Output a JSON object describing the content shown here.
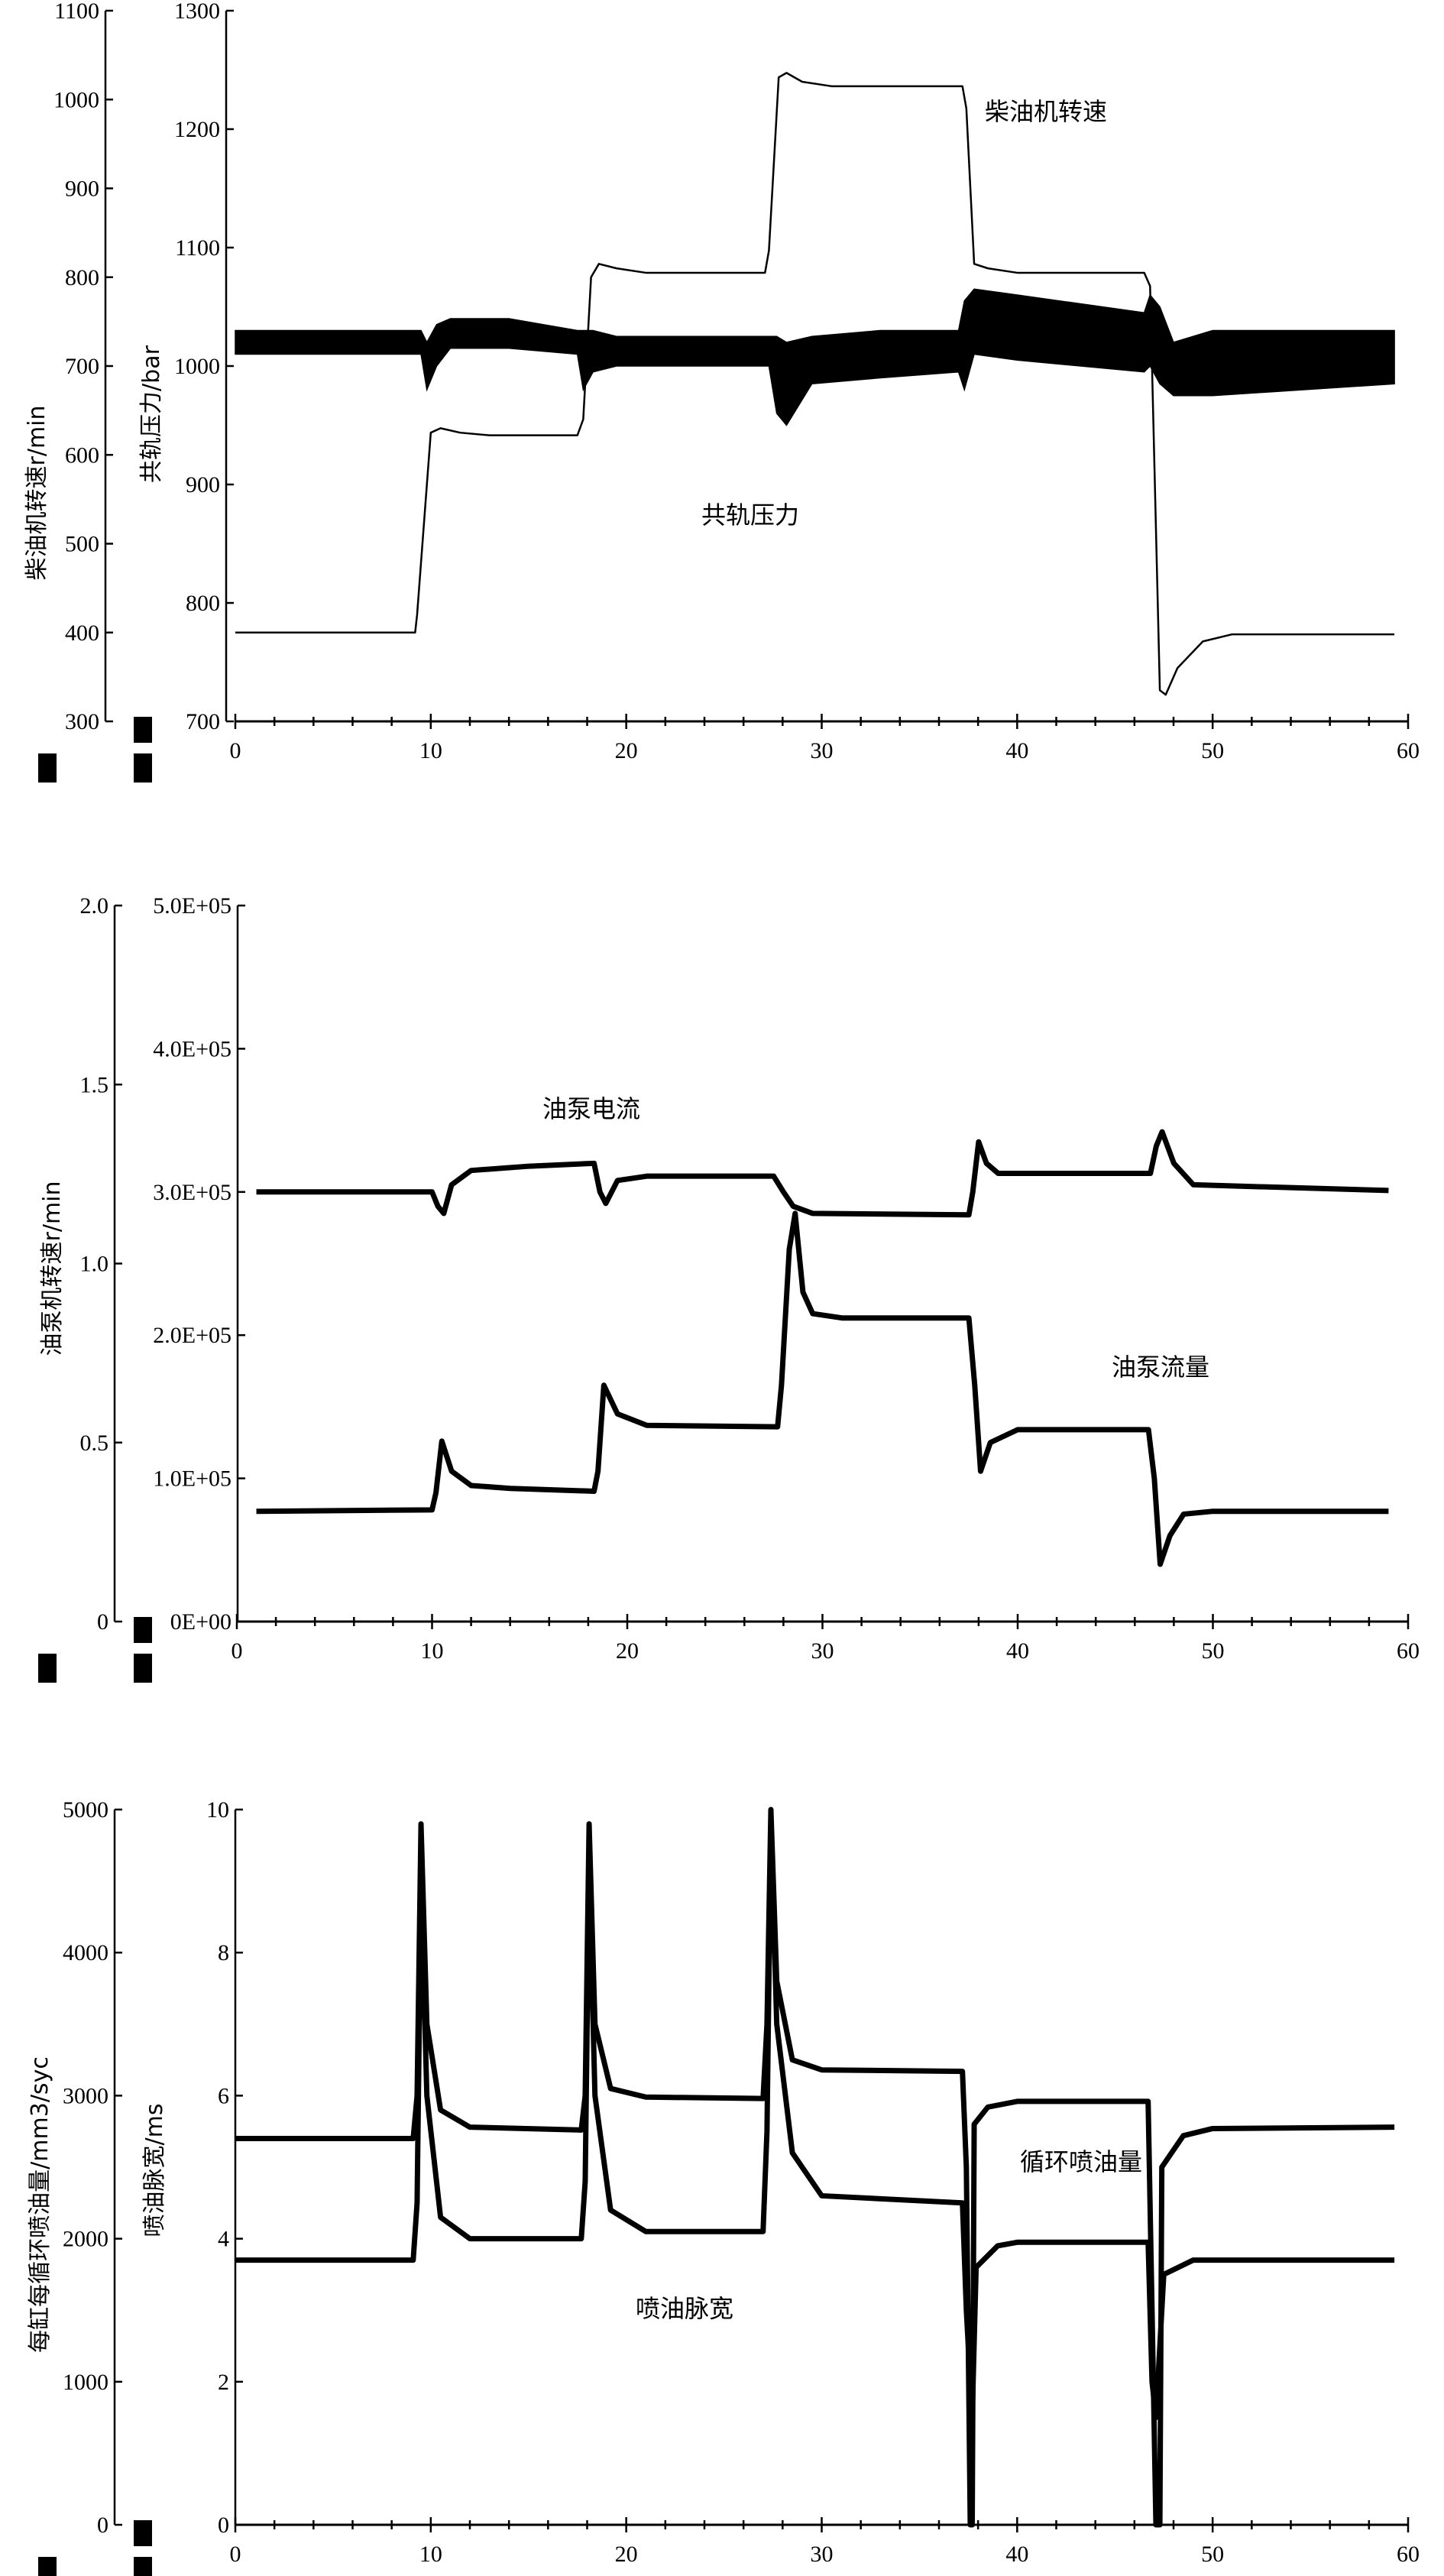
{
  "chart_data": [
    {
      "type": "line",
      "xlabel": "",
      "xlim": [
        0,
        60
      ],
      "x_ticks": [
        "0",
        "10",
        "20",
        "30",
        "40",
        "50",
        "60"
      ],
      "left_axes": [
        {
          "label": "柴油机转速r/min",
          "ylim": [
            300,
            1100
          ],
          "ticks": [
            "300",
            "400",
            "500",
            "600",
            "700",
            "800",
            "900",
            "1000",
            "1100"
          ]
        },
        {
          "label": "共轨压力/bar",
          "ylim": [
            700,
            1300
          ],
          "ticks": [
            "700",
            "800",
            "900",
            "1000",
            "1100",
            "1200",
            "1300"
          ]
        }
      ],
      "series": [
        {
          "name": "柴油机转速",
          "axis": 0,
          "style": "thin",
          "points": [
            [
              0,
              400
            ],
            [
              9.2,
              400
            ],
            [
              9.3,
              420
            ],
            [
              10.0,
              625
            ],
            [
              10.5,
              630
            ],
            [
              11.5,
              625
            ],
            [
              13,
              622
            ],
            [
              17.5,
              622
            ],
            [
              17.8,
              640
            ],
            [
              18.2,
              800
            ],
            [
              18.6,
              815
            ],
            [
              19.5,
              810
            ],
            [
              21,
              805
            ],
            [
              27.1,
              805
            ],
            [
              27.3,
              830
            ],
            [
              27.8,
              1025
            ],
            [
              28.2,
              1030
            ],
            [
              29,
              1020
            ],
            [
              30.5,
              1015
            ],
            [
              37.2,
              1015
            ],
            [
              37.4,
              990
            ],
            [
              37.8,
              815
            ],
            [
              38.5,
              810
            ],
            [
              40,
              805
            ],
            [
              46.5,
              805
            ],
            [
              46.8,
              790
            ],
            [
              47.3,
              335
            ],
            [
              47.6,
              330
            ],
            [
              48.2,
              360
            ],
            [
              49.5,
              390
            ],
            [
              51,
              398
            ],
            [
              59.3,
              398
            ]
          ]
        },
        {
          "name": "共轨压力",
          "axis": 1,
          "style": "band",
          "points": [
            [
              0,
              1010,
              1030
            ],
            [
              9.5,
              1010,
              1030
            ],
            [
              9.8,
              980,
              1020
            ],
            [
              10.3,
              1000,
              1035
            ],
            [
              11,
              1015,
              1040
            ],
            [
              14,
              1015,
              1040
            ],
            [
              17.5,
              1010,
              1030
            ],
            [
              17.8,
              980,
              1030
            ],
            [
              18.3,
              995,
              1030
            ],
            [
              19.5,
              1000,
              1025
            ],
            [
              27.3,
              1000,
              1025
            ],
            [
              27.7,
              960,
              1025
            ],
            [
              28.2,
              950,
              1020
            ],
            [
              29.5,
              985,
              1025
            ],
            [
              33,
              990,
              1030
            ],
            [
              37,
              995,
              1030
            ],
            [
              37.3,
              980,
              1055
            ],
            [
              37.8,
              1010,
              1065
            ],
            [
              40,
              1005,
              1060
            ],
            [
              46.5,
              995,
              1045
            ],
            [
              46.8,
              1000,
              1060
            ],
            [
              47.3,
              985,
              1050
            ],
            [
              48,
              975,
              1020
            ],
            [
              50,
              975,
              1030
            ],
            [
              59.3,
              985,
              1030
            ]
          ]
        }
      ],
      "annotations": [
        "柴油机转速",
        "共轨压力"
      ]
    },
    {
      "type": "line",
      "xlabel": "",
      "xlim": [
        0,
        60
      ],
      "x_ticks": [
        "0",
        "10",
        "20",
        "30",
        "40",
        "50",
        "60"
      ],
      "left_axes": [
        {
          "label": "油泵机转速r/min",
          "ylim": [
            0,
            2.0
          ],
          "ticks": [
            "0",
            "0.5",
            "1.0",
            "1.5",
            "2.0"
          ]
        },
        {
          "label": "",
          "ylim": [
            0,
            500000
          ],
          "ticks": [
            "0E+00",
            "1.0E+05",
            "2.0E+05",
            "3.0E+05",
            "4.0E+05",
            "5.0E+05"
          ]
        }
      ],
      "series": [
        {
          "name": "油泵电流",
          "axis": 1,
          "style": "thick",
          "points": [
            [
              1,
              300000
            ],
            [
              10,
              300000
            ],
            [
              10.3,
              290000
            ],
            [
              10.6,
              285000
            ],
            [
              11,
              305000
            ],
            [
              12,
              315000
            ],
            [
              15,
              318000
            ],
            [
              18.3,
              320000
            ],
            [
              18.6,
              300000
            ],
            [
              18.9,
              292000
            ],
            [
              19.5,
              308000
            ],
            [
              21,
              311000
            ],
            [
              27.5,
              311000
            ],
            [
              28,
              300000
            ],
            [
              28.5,
              290000
            ],
            [
              29.5,
              285000
            ],
            [
              37.5,
              284000
            ],
            [
              37.7,
              300000
            ],
            [
              38,
              335000
            ],
            [
              38.4,
              320000
            ],
            [
              39,
              313000
            ],
            [
              46.8,
              313000
            ],
            [
              47.1,
              332000
            ],
            [
              47.4,
              342000
            ],
            [
              48,
              320000
            ],
            [
              49,
              305000
            ],
            [
              59,
              301000
            ]
          ]
        },
        {
          "name": "油泵流量",
          "axis": 1,
          "style": "thick",
          "points": [
            [
              1,
              77000
            ],
            [
              10,
              78000
            ],
            [
              10.2,
              90000
            ],
            [
              10.5,
              126000
            ],
            [
              11,
              105000
            ],
            [
              12,
              95000
            ],
            [
              14,
              93000
            ],
            [
              18.3,
              91000
            ],
            [
              18.5,
              105000
            ],
            [
              18.8,
              165000
            ],
            [
              19.5,
              145000
            ],
            [
              21,
              137000
            ],
            [
              27.7,
              136000
            ],
            [
              27.9,
              165000
            ],
            [
              28.3,
              260000
            ],
            [
              28.6,
              285000
            ],
            [
              29,
              230000
            ],
            [
              29.5,
              215000
            ],
            [
              31,
              212000
            ],
            [
              37.5,
              212000
            ],
            [
              37.8,
              165000
            ],
            [
              38.1,
              105000
            ],
            [
              38.6,
              125000
            ],
            [
              40,
              134000
            ],
            [
              46.7,
              134000
            ],
            [
              47,
              100000
            ],
            [
              47.3,
              40000
            ],
            [
              47.8,
              60000
            ],
            [
              48.5,
              75000
            ],
            [
              50,
              77000
            ],
            [
              59,
              77000
            ]
          ]
        }
      ],
      "annotations": [
        "油泵电流",
        "油泵流量"
      ]
    },
    {
      "type": "line",
      "xlabel": "",
      "xlim": [
        0,
        60
      ],
      "x_ticks": [
        "0",
        "10",
        "20",
        "30",
        "40",
        "50",
        "60"
      ],
      "left_axes": [
        {
          "label": "每缸每循环喷油量/mm3/syc",
          "ylim": [
            0,
            5000
          ],
          "ticks": [
            "0",
            "1000",
            "2000",
            "3000",
            "4000",
            "5000"
          ]
        },
        {
          "label": "喷油脉宽/ms",
          "ylim": [
            0,
            10
          ],
          "ticks": [
            "0",
            "2",
            "4",
            "6",
            "8",
            "10"
          ]
        }
      ],
      "series": [
        {
          "name": "循环喷油量",
          "axis": 0,
          "style": "thick",
          "points": [
            [
              0,
              2700
            ],
            [
              9.1,
              2700
            ],
            [
              9.3,
              3000
            ],
            [
              9.5,
              4900
            ],
            [
              9.8,
              3500
            ],
            [
              10.5,
              2900
            ],
            [
              12,
              2780
            ],
            [
              17.7,
              2760
            ],
            [
              17.9,
              3000
            ],
            [
              18.1,
              4900
            ],
            [
              18.4,
              3500
            ],
            [
              19.2,
              3050
            ],
            [
              21,
              2990
            ],
            [
              27,
              2980
            ],
            [
              27.2,
              3500
            ],
            [
              27.4,
              5000
            ],
            [
              27.7,
              3800
            ],
            [
              28.5,
              3250
            ],
            [
              30,
              3180
            ],
            [
              37.2,
              3170
            ],
            [
              37.4,
              2500
            ],
            [
              37.6,
              0
            ],
            [
              37.7,
              0
            ],
            [
              37.8,
              2800
            ],
            [
              38.5,
              2920
            ],
            [
              40,
              2960
            ],
            [
              46.7,
              2960
            ],
            [
              46.9,
              1500
            ],
            [
              47.1,
              0
            ],
            [
              47.3,
              0
            ],
            [
              47.4,
              2500
            ],
            [
              48.5,
              2720
            ],
            [
              50,
              2770
            ],
            [
              59.3,
              2780
            ]
          ]
        },
        {
          "name": "喷油脉宽",
          "axis": 1,
          "style": "thick",
          "points": [
            [
              0,
              3.7
            ],
            [
              9.1,
              3.7
            ],
            [
              9.3,
              4.5
            ],
            [
              9.5,
              9.0
            ],
            [
              9.8,
              6.0
            ],
            [
              10.5,
              4.3
            ],
            [
              12,
              4.0
            ],
            [
              17.7,
              4.0
            ],
            [
              17.9,
              4.8
            ],
            [
              18.1,
              9.2
            ],
            [
              18.4,
              6.0
            ],
            [
              19.2,
              4.4
            ],
            [
              21,
              4.1
            ],
            [
              27,
              4.1
            ],
            [
              27.2,
              5.5
            ],
            [
              27.4,
              9.8
            ],
            [
              27.7,
              7.0
            ],
            [
              28.5,
              5.2
            ],
            [
              30,
              4.6
            ],
            [
              37.2,
              4.5
            ],
            [
              37.4,
              3.0
            ],
            [
              37.7,
              1.5
            ],
            [
              37.9,
              3.6
            ],
            [
              39,
              3.9
            ],
            [
              40,
              3.95
            ],
            [
              46.7,
              3.95
            ],
            [
              46.9,
              2.0
            ],
            [
              47.1,
              1.5
            ],
            [
              47.3,
              2.5
            ],
            [
              47.5,
              3.5
            ],
            [
              49,
              3.7
            ],
            [
              59.3,
              3.7
            ]
          ]
        }
      ],
      "annotations": [
        "循环喷油量",
        "喷油脉宽"
      ]
    }
  ]
}
